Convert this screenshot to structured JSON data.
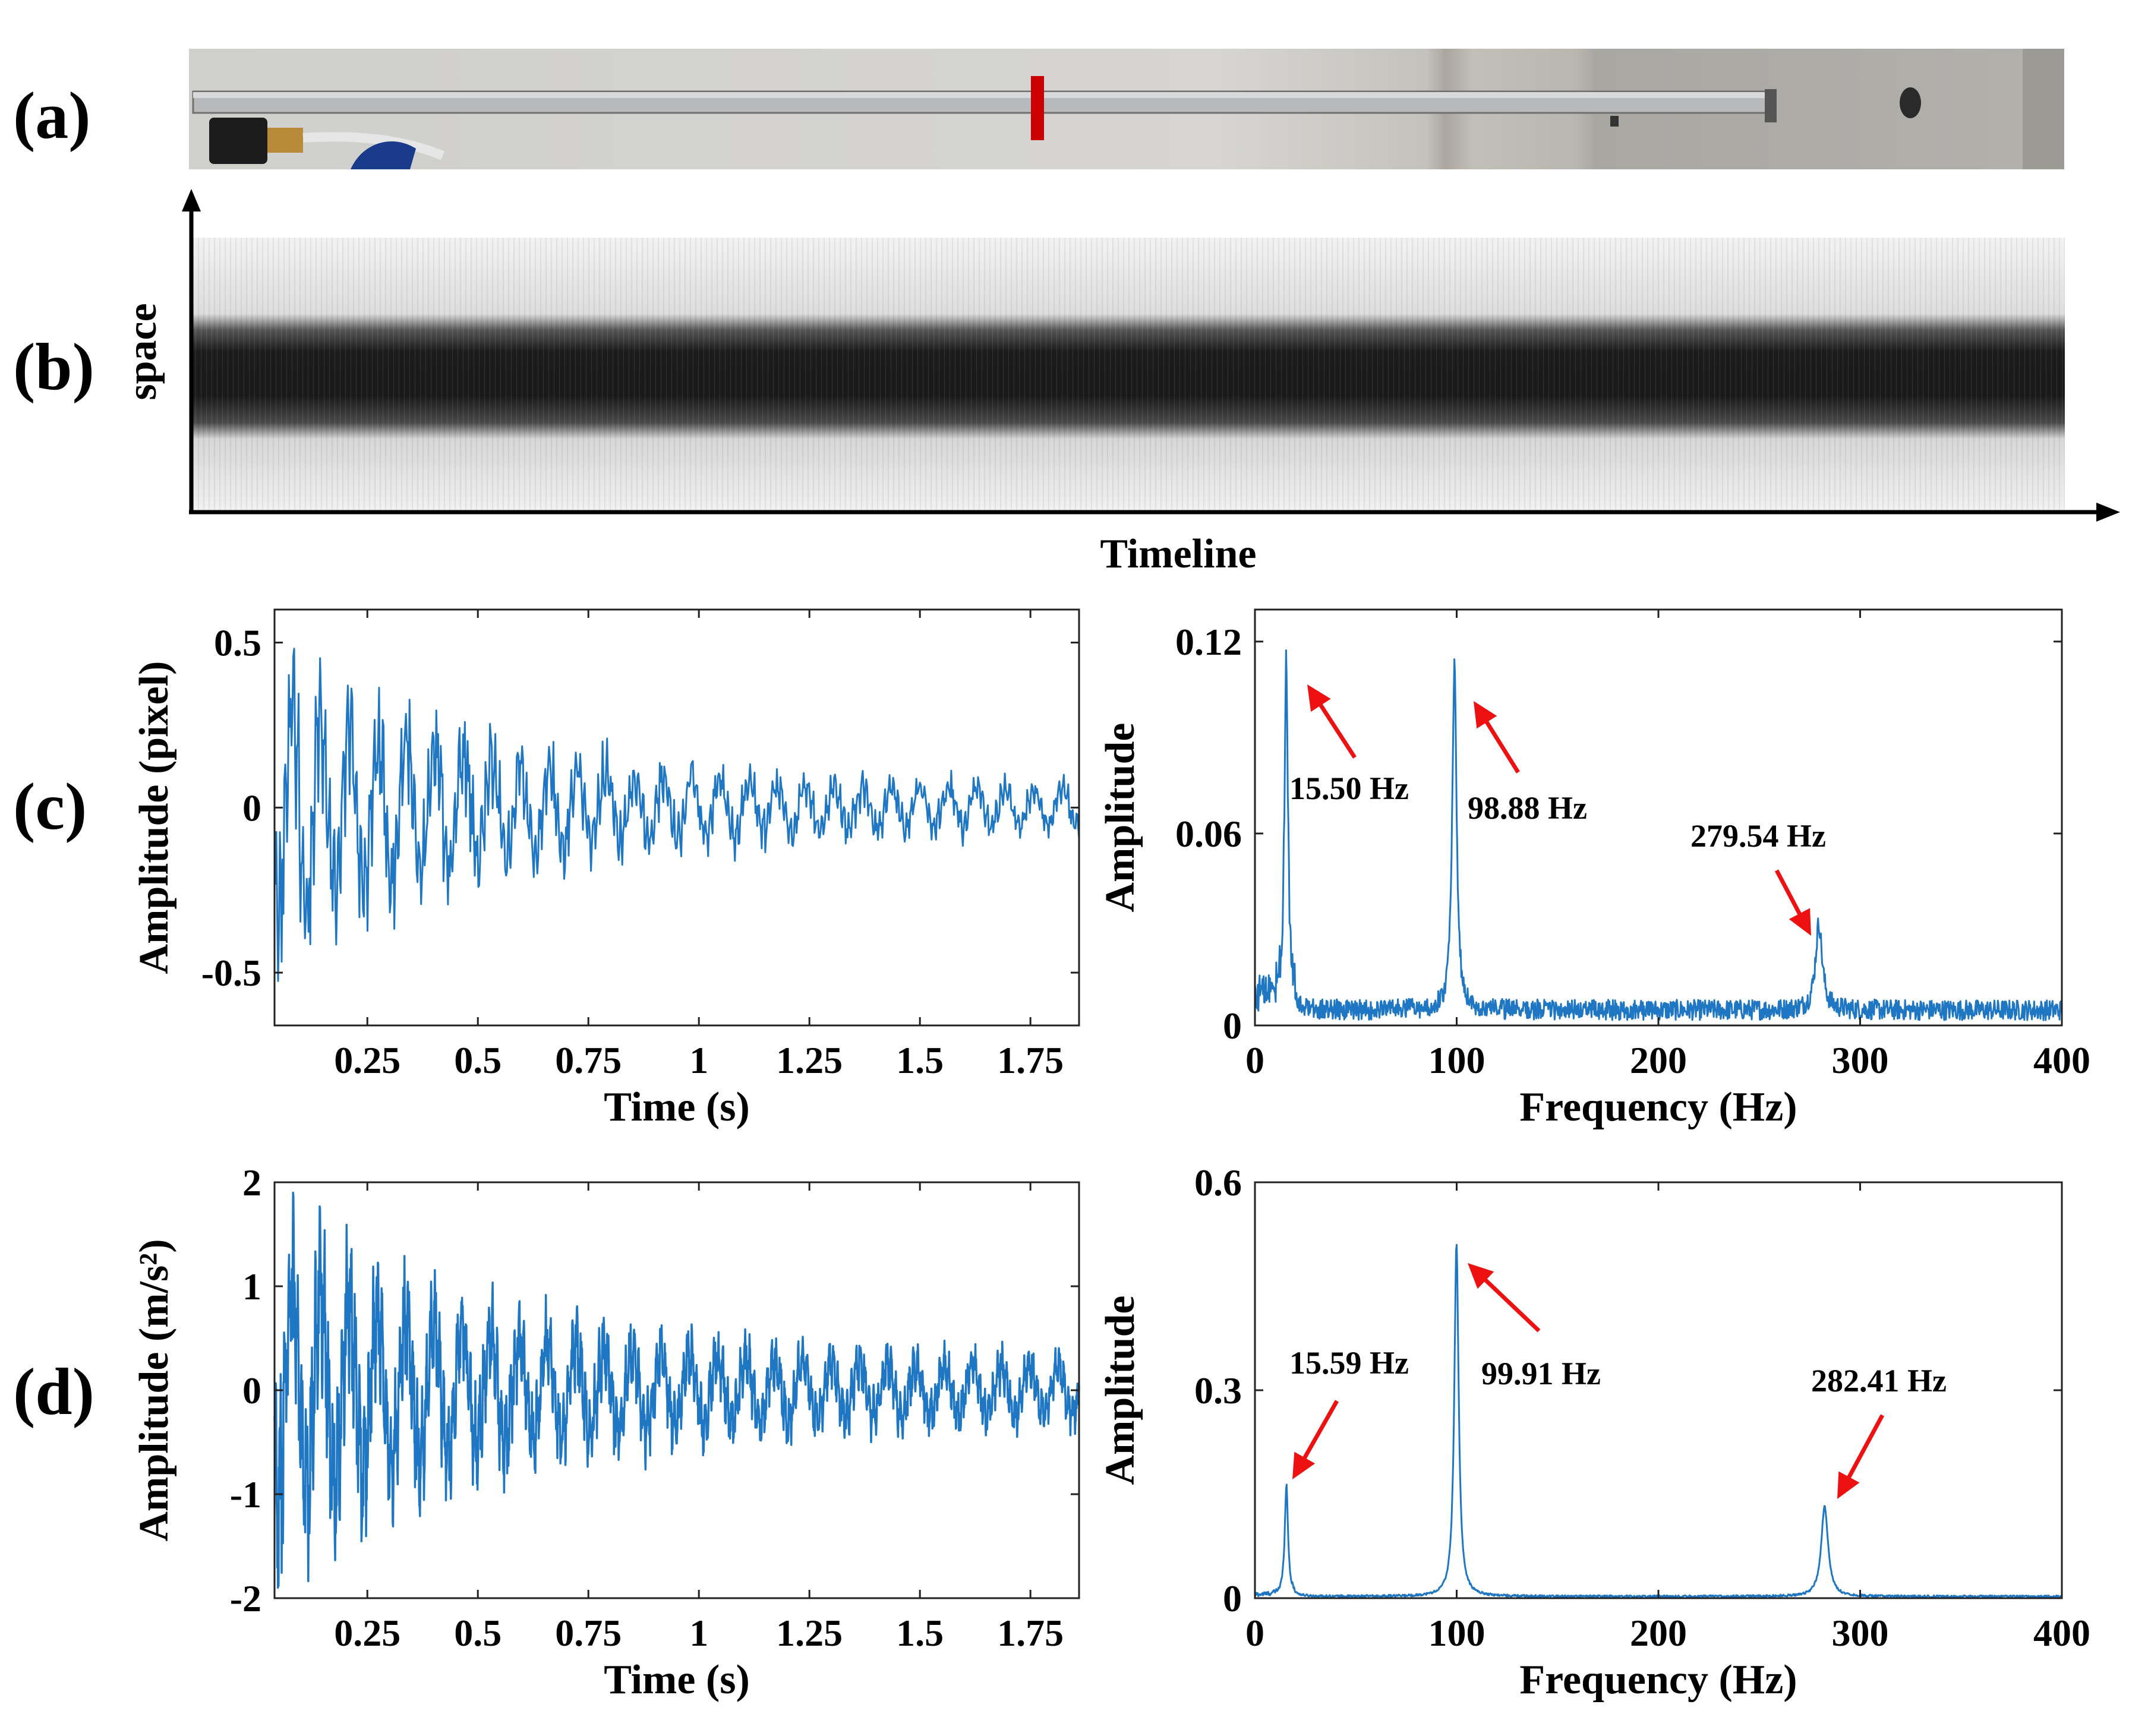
{
  "panels": {
    "a": "(a)",
    "b": "(b)",
    "c": "(c)",
    "d": "(d)"
  },
  "colors": {
    "trace": "#1f77c4",
    "arrow": "#ee1111",
    "marker": "#cc0000"
  },
  "panel_b": {
    "ylabel": "space",
    "xlabel": "Timeline"
  },
  "chart_data": [
    {
      "id": "c-time",
      "type": "line",
      "xlabel": "Time (s)",
      "ylabel": "Amplitude (pixel)",
      "xlim": [
        0.04,
        1.86
      ],
      "ylim": [
        -0.66,
        0.6
      ],
      "xticks": [
        0.25,
        0.5,
        0.75,
        1,
        1.25,
        1.5,
        1.75
      ],
      "xtick_labels": [
        "0.25",
        "0.5",
        "0.75",
        "1",
        "1.25",
        "1.5",
        "1.75"
      ],
      "yticks": [
        -0.5,
        0,
        0.5
      ],
      "ytick_labels": [
        "-0.5",
        "0",
        "0.5"
      ],
      "series": [
        {
          "signal": "damped vibration",
          "peak_amplitude": 0.6,
          "final_amplitude": 0.08,
          "components_hz": [
            15.5,
            98.88,
            279.54
          ]
        }
      ]
    },
    {
      "id": "c-freq",
      "type": "line",
      "xlabel": "Frequency (Hz)",
      "ylabel": "Amplitude",
      "xlim": [
        0,
        400
      ],
      "ylim": [
        0,
        0.13
      ],
      "xticks": [
        0,
        100,
        200,
        300,
        400
      ],
      "xtick_labels": [
        "0",
        "100",
        "200",
        "300",
        "400"
      ],
      "yticks": [
        0,
        0.06,
        0.12
      ],
      "ytick_labels": [
        "0",
        "0.06",
        "0.12"
      ],
      "peaks": [
        {
          "x": 15.5,
          "y": 0.11,
          "label": "15.50 Hz"
        },
        {
          "x": 98.88,
          "y": 0.107,
          "label": "98.88 Hz"
        },
        {
          "x": 279.54,
          "y": 0.027,
          "label": "279.54 Hz"
        }
      ],
      "noise_floor": 0.004
    },
    {
      "id": "d-time",
      "type": "line",
      "xlabel": "Time (s)",
      "ylabel": "Amplitude (m/s²)",
      "xlim": [
        0.04,
        1.86
      ],
      "ylim": [
        -2,
        2
      ],
      "xticks": [
        0.25,
        0.5,
        0.75,
        1,
        1.25,
        1.5,
        1.75
      ],
      "xtick_labels": [
        "0.25",
        "0.5",
        "0.75",
        "1",
        "1.25",
        "1.5",
        "1.75"
      ],
      "yticks": [
        -2,
        -1,
        0,
        1,
        2
      ],
      "ytick_labels": [
        "-2",
        "-1",
        "0",
        "1",
        "2"
      ],
      "series": [
        {
          "signal": "damped vibration",
          "peak_amplitude": 1.95,
          "final_amplitude": 0.35,
          "components_hz": [
            15.59,
            99.91,
            282.41
          ]
        }
      ]
    },
    {
      "id": "d-freq",
      "type": "line",
      "xlabel": "Frequency (Hz)",
      "ylabel": "Amplitude",
      "xlim": [
        0,
        400
      ],
      "ylim": [
        0,
        0.6
      ],
      "xticks": [
        0,
        100,
        200,
        300,
        400
      ],
      "xtick_labels": [
        "0",
        "100",
        "200",
        "300",
        "400"
      ],
      "yticks": [
        0,
        0.3,
        0.6
      ],
      "ytick_labels": [
        "0",
        "0.3",
        "0.6"
      ],
      "peaks": [
        {
          "x": 15.59,
          "y": 0.16,
          "label": "15.59 Hz"
        },
        {
          "x": 99.91,
          "y": 0.51,
          "label": "99.91 Hz"
        },
        {
          "x": 282.41,
          "y": 0.13,
          "label": "282.41 Hz"
        }
      ],
      "noise_floor": 0.002
    }
  ]
}
